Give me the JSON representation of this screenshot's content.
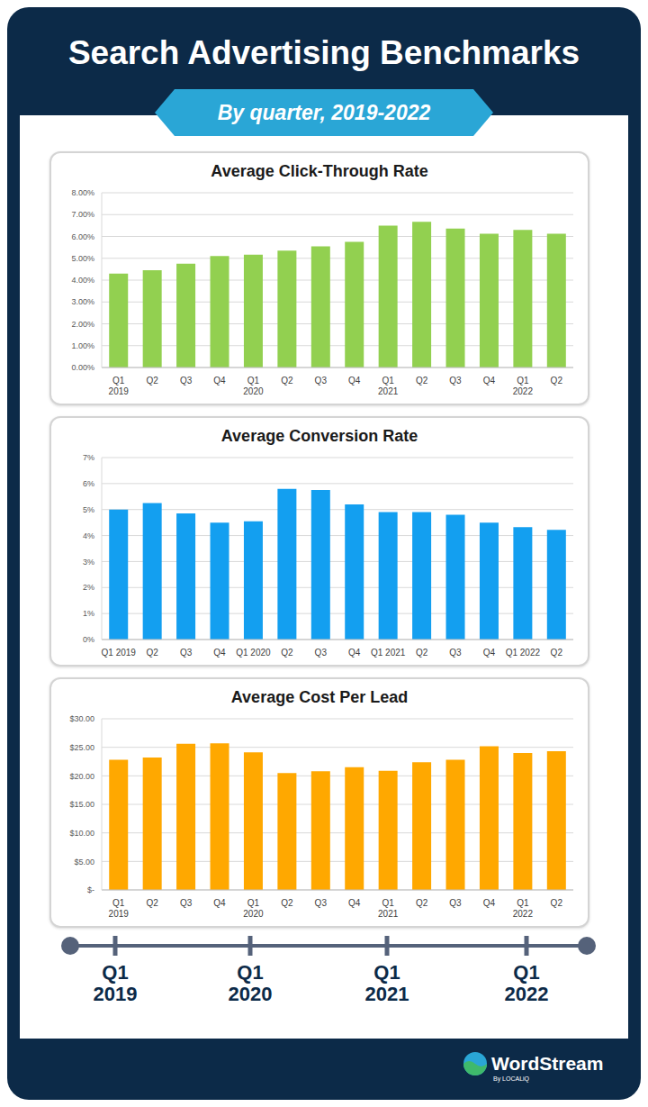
{
  "header": {
    "title": "Search Advertising Benchmarks",
    "subtitle": "By quarter, 2019-2022"
  },
  "chart_data": [
    {
      "type": "bar",
      "title": "Average Click-Through Rate",
      "categories": [
        "Q1\n2019",
        "Q2",
        "Q3",
        "Q4",
        "Q1\n2020",
        "Q2",
        "Q3",
        "Q4",
        "Q1\n2021",
        "Q2",
        "Q3",
        "Q4",
        "Q1\n2022",
        "Q2"
      ],
      "values": [
        4.3,
        4.45,
        4.75,
        5.1,
        5.17,
        5.35,
        5.55,
        5.75,
        6.5,
        6.67,
        6.36,
        6.12,
        6.3,
        6.12
      ],
      "color": "#92d050",
      "ylim": [
        0,
        8
      ],
      "yticks": [
        {
          "value": 0,
          "label": "0.00%"
        },
        {
          "value": 1,
          "label": "1.00%"
        },
        {
          "value": 2,
          "label": "2.00%"
        },
        {
          "value": 3,
          "label": "3.00%"
        },
        {
          "value": 4,
          "label": "4.00%"
        },
        {
          "value": 5,
          "label": "5.00%"
        },
        {
          "value": 6,
          "label": "6.00%"
        },
        {
          "value": 7,
          "label": "7.00%"
        },
        {
          "value": 8,
          "label": "8.00%"
        }
      ],
      "grid": true
    },
    {
      "type": "bar",
      "title": "Average Conversion Rate",
      "categories": [
        "Q1 2019",
        "Q2",
        "Q3",
        "Q4",
        "Q1 2020",
        "Q2",
        "Q3",
        "Q4",
        "Q1 2021",
        "Q2",
        "Q3",
        "Q4",
        "Q1 2022",
        "Q2"
      ],
      "values": [
        5.0,
        5.25,
        4.85,
        4.5,
        4.55,
        5.8,
        5.75,
        5.2,
        4.9,
        4.9,
        4.8,
        4.5,
        4.32,
        4.22
      ],
      "color": "#139ff0",
      "ylim": [
        0,
        7
      ],
      "yticks": [
        {
          "value": 0,
          "label": "0%"
        },
        {
          "value": 1,
          "label": "1%"
        },
        {
          "value": 2,
          "label": "2%"
        },
        {
          "value": 3,
          "label": "3%"
        },
        {
          "value": 4,
          "label": "4%"
        },
        {
          "value": 5,
          "label": "5%"
        },
        {
          "value": 6,
          "label": "6%"
        },
        {
          "value": 7,
          "label": "7%"
        }
      ],
      "grid": true
    },
    {
      "type": "bar",
      "title": "Average Cost Per Lead",
      "categories": [
        "Q1\n2019",
        "Q2",
        "Q3",
        "Q4",
        "Q1\n2020",
        "Q2",
        "Q3",
        "Q4",
        "Q1\n2021",
        "Q2",
        "Q3",
        "Q4",
        "Q1\n2022",
        "Q2"
      ],
      "values": [
        22.8,
        23.2,
        25.6,
        25.7,
        24.1,
        20.5,
        20.8,
        21.5,
        20.9,
        22.4,
        22.8,
        25.2,
        24.0,
        24.3
      ],
      "color": "#ffa800",
      "ylim": [
        0,
        30
      ],
      "yticks": [
        {
          "value": 0,
          "label": "$-"
        },
        {
          "value": 5,
          "label": "$5.00"
        },
        {
          "value": 10,
          "label": "$10.00"
        },
        {
          "value": 15,
          "label": "$15.00"
        },
        {
          "value": 20,
          "label": "$20.00"
        },
        {
          "value": 25,
          "label": "$25.00"
        },
        {
          "value": 30,
          "label": "$30.00"
        }
      ],
      "grid": true
    }
  ],
  "timeline": [
    "Q1\n2019",
    "Q1\n2020",
    "Q1\n2021",
    "Q1\n2022"
  ],
  "footer": {
    "brand": "WordStream",
    "byline": "By LOCALiQ"
  }
}
